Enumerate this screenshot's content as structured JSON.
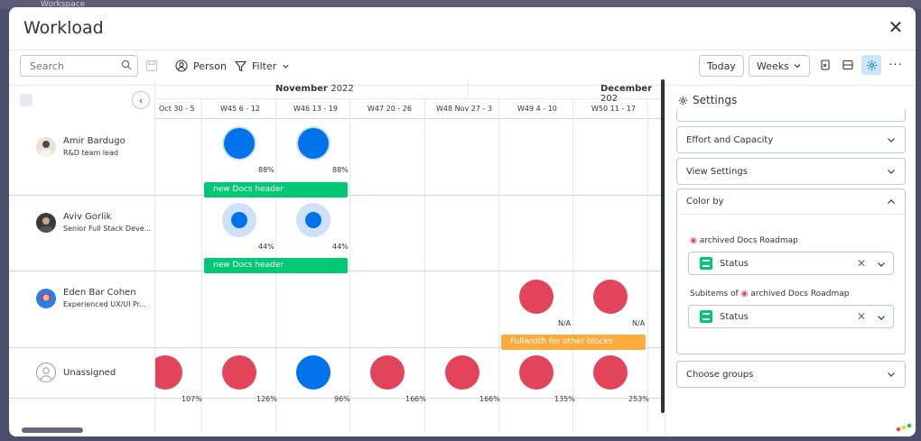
{
  "background": {
    "top_text": "Workspace"
  },
  "modal": {
    "title": "Workload",
    "close_icon": "close-icon"
  },
  "toolbar": {
    "search_placeholder": "Search",
    "person_label": "Person",
    "filter_label": "Filter",
    "today_label": "Today",
    "view_label": "Weeks"
  },
  "timeline": {
    "months": [
      {
        "name": "November",
        "year": "2022"
      },
      {
        "name": "December",
        "year": "202"
      }
    ],
    "weeks": [
      {
        "label": "Oct 30 - 5"
      },
      {
        "label": "W45  6 - 12"
      },
      {
        "label": "W46  13 - 19"
      },
      {
        "label": "W47  20 - 26"
      },
      {
        "label": "W48  Nov 27 - 3"
      },
      {
        "label": "W49  4 - 10"
      },
      {
        "label": "W50  11 - 17"
      }
    ]
  },
  "people": [
    {
      "name": "Amir Bardugo",
      "role": "R&D team lead"
    },
    {
      "name": "Aviv Gorlik",
      "role": "Senior Full Stack Deve..."
    },
    {
      "name": "Eden Bar Cohen",
      "role": "Experienced UX/UI Pr..."
    },
    {
      "name": "Unassigned",
      "role": ""
    }
  ],
  "workload": {
    "row0": {
      "w45": "88%",
      "w46": "88%",
      "bar": "new Docs header"
    },
    "row1": {
      "w45": "44%",
      "w46": "44%",
      "bar": "new Docs header"
    },
    "row2": {
      "w49": "N/A",
      "w50": "N/A",
      "bar": "Fullwidth for other blocks"
    },
    "row3": {
      "c0": "107%",
      "c1": "126%",
      "c2": "96%",
      "c3": "166%",
      "c4": "166%",
      "c5": "135%",
      "c6": "253%"
    }
  },
  "colors": {
    "blue": "#0073ea",
    "light_blue": "#cfe0fa",
    "red": "#e2445c",
    "green": "#00c875",
    "orange": "#fdab3d",
    "accent_active": "#cce5ff"
  },
  "settings": {
    "title": "Settings",
    "sections": {
      "effort": "Effort and Capacity",
      "view": "View Settings",
      "color_by": "Color by",
      "choose_groups": "Choose groups"
    },
    "color_by": {
      "board_label": "archived Docs Roadmap",
      "board_select": "Status",
      "subitems_label": "Subitems of",
      "subitems_board": "archived Docs Roadmap",
      "subitems_select": "Status"
    }
  }
}
